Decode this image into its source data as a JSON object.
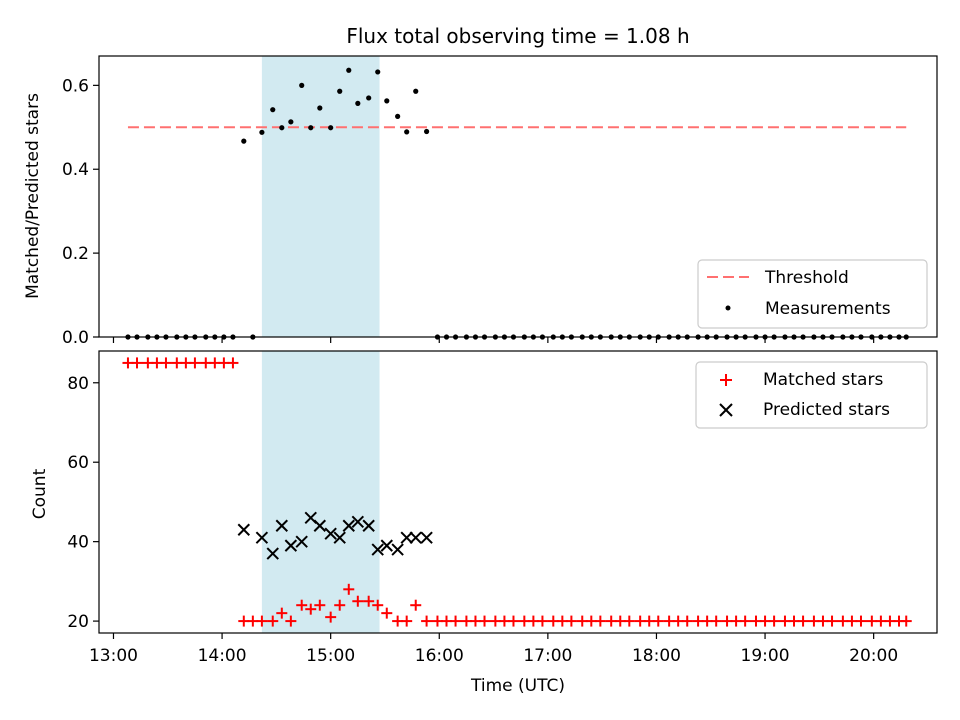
{
  "chart_data": [
    {
      "type": "scatter",
      "title": "Flux total observing time = 1.08 h",
      "xlabel": "",
      "ylabel": "Matched/Predicted stars",
      "ylim": [
        0,
        0.67
      ],
      "yticks": [
        "0.0",
        "0.2",
        "0.4",
        "0.6"
      ],
      "highlight_span": [
        "14:22",
        "15:27"
      ],
      "threshold": {
        "name": "Threshold",
        "value": 0.5,
        "x_range": [
          "13:08",
          "20:18"
        ],
        "color": "#ff7070",
        "style": "dashed"
      },
      "series": [
        {
          "name": "Measurements",
          "marker": "dot",
          "color": "#000000",
          "points": [
            [
              "13:08",
              0
            ],
            [
              "13:13",
              0
            ],
            [
              "13:19",
              0
            ],
            [
              "13:24",
              0
            ],
            [
              "13:29",
              0
            ],
            [
              "13:35",
              0
            ],
            [
              "13:40",
              0
            ],
            [
              "13:45",
              0
            ],
            [
              "13:51",
              0
            ],
            [
              "13:56",
              0
            ],
            [
              "14:01",
              0
            ],
            [
              "14:06",
              0
            ],
            [
              "14:12",
              0.467
            ],
            [
              "14:17",
              0
            ],
            [
              "14:22",
              0.488
            ],
            [
              "14:28",
              0.542
            ],
            [
              "14:33",
              0.499
            ],
            [
              "14:38",
              0.513
            ],
            [
              "14:44",
              0.6
            ],
            [
              "14:49",
              0.499
            ],
            [
              "14:54",
              0.546
            ],
            [
              "15:00",
              0.499
            ],
            [
              "15:05",
              0.586
            ],
            [
              "15:10",
              0.636
            ],
            [
              "15:15",
              0.557
            ],
            [
              "15:21",
              0.57
            ],
            [
              "15:26",
              0.632
            ],
            [
              "15:31",
              0.563
            ],
            [
              "15:37",
              0.526
            ],
            [
              "15:42",
              0.489
            ],
            [
              "15:47",
              0.586
            ],
            [
              "15:53",
              0.49
            ],
            [
              "15:59",
              0
            ],
            [
              "16:04",
              0
            ],
            [
              "16:09",
              0
            ],
            [
              "16:15",
              0
            ],
            [
              "16:20",
              0
            ],
            [
              "16:25",
              0
            ],
            [
              "16:31",
              0
            ],
            [
              "16:36",
              0
            ],
            [
              "16:41",
              0
            ],
            [
              "16:47",
              0
            ],
            [
              "16:52",
              0
            ],
            [
              "16:57",
              0
            ],
            [
              "17:03",
              0
            ],
            [
              "17:08",
              0
            ],
            [
              "17:13",
              0
            ],
            [
              "17:19",
              0
            ],
            [
              "17:24",
              0
            ],
            [
              "17:29",
              0
            ],
            [
              "17:35",
              0
            ],
            [
              "17:40",
              0
            ],
            [
              "17:45",
              0
            ],
            [
              "17:51",
              0
            ],
            [
              "17:56",
              0
            ],
            [
              "18:01",
              0
            ],
            [
              "18:07",
              0
            ],
            [
              "18:12",
              0
            ],
            [
              "18:17",
              0
            ],
            [
              "18:23",
              0
            ],
            [
              "18:28",
              0
            ],
            [
              "18:33",
              0
            ],
            [
              "18:39",
              0
            ],
            [
              "18:44",
              0
            ],
            [
              "18:49",
              0
            ],
            [
              "18:55",
              0
            ],
            [
              "19:00",
              0
            ],
            [
              "19:05",
              0
            ],
            [
              "19:11",
              0
            ],
            [
              "19:16",
              0
            ],
            [
              "19:21",
              0
            ],
            [
              "19:27",
              0
            ],
            [
              "19:32",
              0
            ],
            [
              "19:37",
              0
            ],
            [
              "19:43",
              0
            ],
            [
              "19:48",
              0
            ],
            [
              "19:53",
              0
            ],
            [
              "19:59",
              0
            ],
            [
              "20:04",
              0
            ],
            [
              "20:09",
              0
            ],
            [
              "20:14",
              0
            ],
            [
              "20:18",
              0
            ]
          ]
        }
      ],
      "legend": {
        "position": "lower right",
        "entries": [
          "Threshold",
          "Measurements"
        ]
      }
    },
    {
      "type": "scatter",
      "title": "",
      "xlabel": "Time (UTC)",
      "ylabel": "Count",
      "ylim": [
        17,
        88
      ],
      "yticks": [
        "20",
        "40",
        "60",
        "80"
      ],
      "xlim": [
        "12:52",
        "20:35"
      ],
      "xticks": [
        "13:00",
        "14:00",
        "15:00",
        "16:00",
        "17:00",
        "18:00",
        "19:00",
        "20:00"
      ],
      "highlight_span": [
        "14:22",
        "15:27"
      ],
      "series": [
        {
          "name": "Matched stars",
          "marker": "plus",
          "color": "#ff0000",
          "points": [
            [
              "13:08",
              85
            ],
            [
              "13:13",
              85
            ],
            [
              "13:19",
              85
            ],
            [
              "13:24",
              85
            ],
            [
              "13:29",
              85
            ],
            [
              "13:35",
              85
            ],
            [
              "13:40",
              85
            ],
            [
              "13:45",
              85
            ],
            [
              "13:51",
              85
            ],
            [
              "13:56",
              85
            ],
            [
              "14:01",
              85
            ],
            [
              "14:06",
              85
            ],
            [
              "14:12",
              20
            ],
            [
              "14:17",
              20
            ],
            [
              "14:22",
              20
            ],
            [
              "14:28",
              20
            ],
            [
              "14:33",
              22
            ],
            [
              "14:38",
              20
            ],
            [
              "14:44",
              24
            ],
            [
              "14:49",
              23
            ],
            [
              "14:54",
              24
            ],
            [
              "15:00",
              21
            ],
            [
              "15:05",
              24
            ],
            [
              "15:10",
              28
            ],
            [
              "15:15",
              25
            ],
            [
              "15:21",
              25
            ],
            [
              "15:26",
              24
            ],
            [
              "15:31",
              22
            ],
            [
              "15:37",
              20
            ],
            [
              "15:42",
              20
            ],
            [
              "15:47",
              24
            ],
            [
              "15:53",
              20
            ],
            [
              "15:59",
              20
            ],
            [
              "16:04",
              20
            ],
            [
              "16:09",
              20
            ],
            [
              "16:15",
              20
            ],
            [
              "16:20",
              20
            ],
            [
              "16:25",
              20
            ],
            [
              "16:31",
              20
            ],
            [
              "16:36",
              20
            ],
            [
              "16:41",
              20
            ],
            [
              "16:47",
              20
            ],
            [
              "16:52",
              20
            ],
            [
              "16:57",
              20
            ],
            [
              "17:03",
              20
            ],
            [
              "17:08",
              20
            ],
            [
              "17:13",
              20
            ],
            [
              "17:19",
              20
            ],
            [
              "17:24",
              20
            ],
            [
              "17:29",
              20
            ],
            [
              "17:35",
              20
            ],
            [
              "17:40",
              20
            ],
            [
              "17:45",
              20
            ],
            [
              "17:51",
              20
            ],
            [
              "17:56",
              20
            ],
            [
              "18:01",
              20
            ],
            [
              "18:07",
              20
            ],
            [
              "18:12",
              20
            ],
            [
              "18:17",
              20
            ],
            [
              "18:23",
              20
            ],
            [
              "18:28",
              20
            ],
            [
              "18:33",
              20
            ],
            [
              "18:39",
              20
            ],
            [
              "18:44",
              20
            ],
            [
              "18:49",
              20
            ],
            [
              "18:55",
              20
            ],
            [
              "19:00",
              20
            ],
            [
              "19:05",
              20
            ],
            [
              "19:11",
              20
            ],
            [
              "19:16",
              20
            ],
            [
              "19:21",
              20
            ],
            [
              "19:27",
              20
            ],
            [
              "19:32",
              20
            ],
            [
              "19:37",
              20
            ],
            [
              "19:43",
              20
            ],
            [
              "19:48",
              20
            ],
            [
              "19:53",
              20
            ],
            [
              "19:59",
              20
            ],
            [
              "20:04",
              20
            ],
            [
              "20:09",
              20
            ],
            [
              "20:14",
              20
            ],
            [
              "20:18",
              20
            ]
          ]
        },
        {
          "name": "Predicted stars",
          "marker": "x",
          "color": "#000000",
          "points": [
            [
              "14:12",
              43
            ],
            [
              "14:22",
              41
            ],
            [
              "14:28",
              37
            ],
            [
              "14:33",
              44
            ],
            [
              "14:38",
              39
            ],
            [
              "14:44",
              40
            ],
            [
              "14:49",
              46
            ],
            [
              "14:54",
              44
            ],
            [
              "15:00",
              42
            ],
            [
              "15:05",
              41
            ],
            [
              "15:10",
              44
            ],
            [
              "15:15",
              45
            ],
            [
              "15:21",
              44
            ],
            [
              "15:26",
              38
            ],
            [
              "15:31",
              39
            ],
            [
              "15:37",
              38
            ],
            [
              "15:42",
              41
            ],
            [
              "15:47",
              41
            ],
            [
              "15:53",
              41
            ]
          ]
        }
      ],
      "legend": {
        "position": "upper right",
        "entries": [
          "Matched stars",
          "Predicted stars"
        ]
      }
    }
  ]
}
